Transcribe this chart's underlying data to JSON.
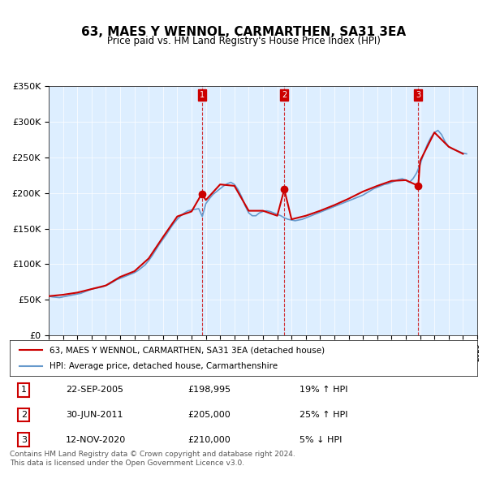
{
  "title": "63, MAES Y WENNOL, CARMARTHEN, SA31 3EA",
  "subtitle": "Price paid vs. HM Land Registry's House Price Index (HPI)",
  "xlabel": "",
  "ylabel": "",
  "ylim": [
    0,
    350000
  ],
  "yticks": [
    0,
    50000,
    100000,
    150000,
    200000,
    250000,
    300000,
    350000
  ],
  "ytick_labels": [
    "£0",
    "£50K",
    "£100K",
    "£150K",
    "£200K",
    "£250K",
    "£300K",
    "£350K"
  ],
  "hpi_color": "#6699cc",
  "price_color": "#cc0000",
  "vline_color": "#cc0000",
  "background_color": "#ddeeff",
  "plot_bg": "#ffffff",
  "transactions": [
    {
      "date": 2005.72,
      "price": 198995,
      "label": "1"
    },
    {
      "date": 2011.49,
      "price": 205000,
      "label": "2"
    },
    {
      "date": 2020.87,
      "price": 210000,
      "label": "3"
    }
  ],
  "vline_dates": [
    2005.72,
    2011.49,
    2020.87
  ],
  "legend_entries": [
    "63, MAES Y WENNOL, CARMARTHEN, SA31 3EA (detached house)",
    "HPI: Average price, detached house, Carmarthenshire"
  ],
  "table_rows": [
    [
      "1",
      "22-SEP-2005",
      "£198,995",
      "19% ↑ HPI"
    ],
    [
      "2",
      "30-JUN-2011",
      "£205,000",
      "25% ↑ HPI"
    ],
    [
      "3",
      "12-NOV-2020",
      "£210,000",
      "5% ↓ HPI"
    ]
  ],
  "footer": "Contains HM Land Registry data © Crown copyright and database right 2024.\nThis data is licensed under the Open Government Licence v3.0.",
  "hpi_data": {
    "dates": [
      1995.0,
      1995.25,
      1995.5,
      1995.75,
      1996.0,
      1996.25,
      1996.5,
      1996.75,
      1997.0,
      1997.25,
      1997.5,
      1997.75,
      1998.0,
      1998.25,
      1998.5,
      1998.75,
      1999.0,
      1999.25,
      1999.5,
      1999.75,
      2000.0,
      2000.25,
      2000.5,
      2000.75,
      2001.0,
      2001.25,
      2001.5,
      2001.75,
      2002.0,
      2002.25,
      2002.5,
      2002.75,
      2003.0,
      2003.25,
      2003.5,
      2003.75,
      2004.0,
      2004.25,
      2004.5,
      2004.75,
      2005.0,
      2005.25,
      2005.5,
      2005.75,
      2006.0,
      2006.25,
      2006.5,
      2006.75,
      2007.0,
      2007.25,
      2007.5,
      2007.75,
      2008.0,
      2008.25,
      2008.5,
      2008.75,
      2009.0,
      2009.25,
      2009.5,
      2009.75,
      2010.0,
      2010.25,
      2010.5,
      2010.75,
      2011.0,
      2011.25,
      2011.5,
      2011.75,
      2012.0,
      2012.25,
      2012.5,
      2012.75,
      2013.0,
      2013.25,
      2013.5,
      2013.75,
      2014.0,
      2014.25,
      2014.5,
      2014.75,
      2015.0,
      2015.25,
      2015.5,
      2015.75,
      2016.0,
      2016.25,
      2016.5,
      2016.75,
      2017.0,
      2017.25,
      2017.5,
      2017.75,
      2018.0,
      2018.25,
      2018.5,
      2018.75,
      2019.0,
      2019.25,
      2019.5,
      2019.75,
      2020.0,
      2020.25,
      2020.5,
      2020.75,
      2021.0,
      2021.25,
      2021.5,
      2021.75,
      2022.0,
      2022.25,
      2022.5,
      2022.75,
      2023.0,
      2023.25,
      2023.5,
      2023.75,
      2024.0,
      2024.25
    ],
    "values": [
      55000,
      54000,
      53500,
      53000,
      54000,
      55000,
      56000,
      57000,
      58000,
      59000,
      61000,
      63000,
      65000,
      66000,
      67000,
      68000,
      70000,
      72000,
      75000,
      78000,
      80000,
      82000,
      84000,
      86000,
      88000,
      91000,
      95000,
      99000,
      105000,
      112000,
      120000,
      128000,
      135000,
      142000,
      150000,
      157000,
      163000,
      168000,
      172000,
      175000,
      176000,
      177000,
      178000,
      167000,
      185000,
      192000,
      198000,
      202000,
      206000,
      210000,
      213000,
      215000,
      212000,
      205000,
      195000,
      182000,
      172000,
      168000,
      168000,
      172000,
      174000,
      175000,
      174000,
      172000,
      170000,
      168000,
      165000,
      163000,
      162000,
      161000,
      162000,
      163000,
      165000,
      167000,
      169000,
      171000,
      173000,
      175000,
      177000,
      179000,
      181000,
      183000,
      185000,
      187000,
      189000,
      191000,
      193000,
      195000,
      197000,
      200000,
      203000,
      206000,
      208000,
      210000,
      212000,
      213000,
      215000,
      217000,
      219000,
      220000,
      218000,
      215000,
      220000,
      228000,
      240000,
      255000,
      268000,
      278000,
      285000,
      288000,
      282000,
      272000,
      265000,
      262000,
      260000,
      258000,
      256000,
      255000
    ]
  },
  "price_line_data": {
    "dates": [
      1995.0,
      1996.0,
      1997.0,
      1998.0,
      1999.0,
      2000.0,
      2001.0,
      2002.0,
      2003.0,
      2004.0,
      2005.0,
      2005.72,
      2006.0,
      2007.0,
      2008.0,
      2009.0,
      2010.0,
      2011.0,
      2011.49,
      2012.0,
      2013.0,
      2014.0,
      2015.0,
      2016.0,
      2017.0,
      2018.0,
      2019.0,
      2020.0,
      2020.87,
      2021.0,
      2022.0,
      2023.0,
      2024.0
    ],
    "values": [
      55000,
      57000,
      60000,
      65000,
      70000,
      82000,
      90000,
      108000,
      138000,
      167000,
      174000,
      198995,
      190000,
      212000,
      210000,
      175000,
      175000,
      168000,
      205000,
      163000,
      168000,
      175000,
      183000,
      192000,
      202000,
      210000,
      217000,
      218000,
      210000,
      245000,
      285000,
      265000,
      255000
    ]
  },
  "xmin": 1995.0,
  "xmax": 2025.0
}
